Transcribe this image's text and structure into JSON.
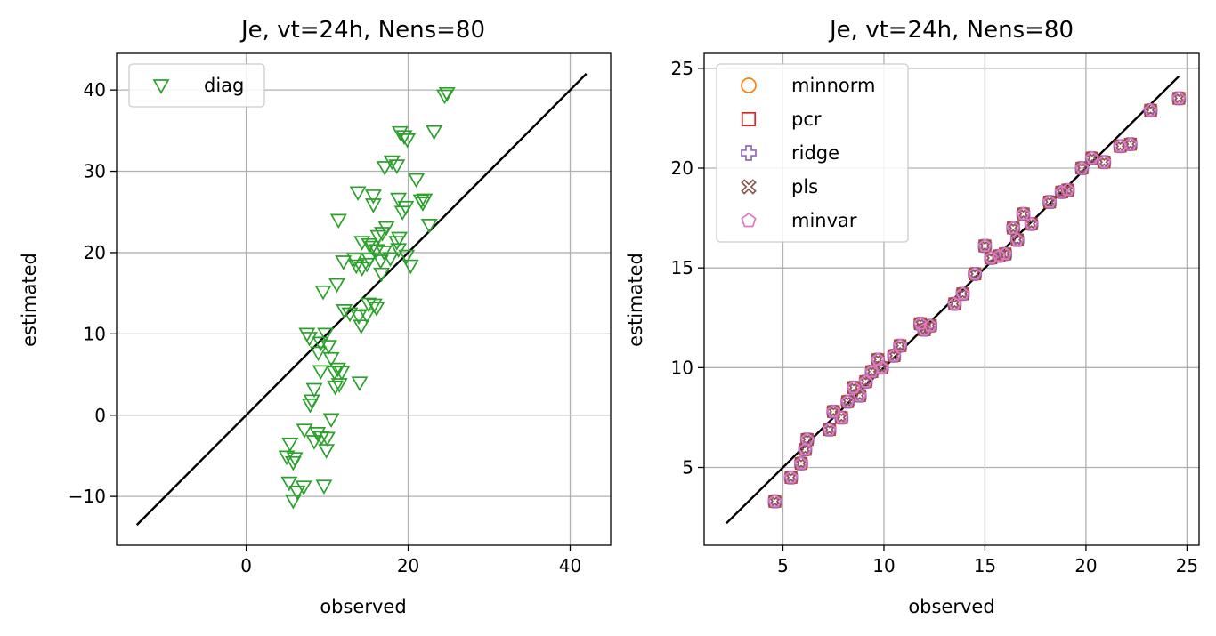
{
  "chart_data": [
    {
      "type": "scatter",
      "title": "Je, vt=24h, Nens=80",
      "xlabel": "observed",
      "ylabel": "estimated",
      "xlim": [
        -16,
        45
      ],
      "ylim": [
        -16,
        44.5
      ],
      "xticks": [
        0,
        20,
        40
      ],
      "xticklabels": [
        "0",
        "20",
        "40"
      ],
      "yticks": [
        -10,
        0,
        10,
        20,
        30,
        40
      ],
      "yticklabels": [
        "−10",
        "0",
        "10",
        "20",
        "30",
        "40"
      ],
      "grid": true,
      "legend_position": "top-left",
      "reference_line": {
        "x": [
          -13.5,
          42
        ],
        "y": [
          -13.5,
          42
        ],
        "color": "#000000"
      },
      "series": [
        {
          "name": "diag",
          "marker": "triangle-down",
          "color": "#2ca02c",
          "x": [
            24.5,
            24.8,
            23.2,
            19.0,
            19.5,
            19.9,
            18.0,
            18.6,
            17.1,
            21.0,
            13.8,
            15.7,
            18.8,
            21.6,
            22.0,
            21.8,
            19.7,
            19.3,
            15.7,
            11.4,
            17.3,
            16.8,
            16.3,
            18.9,
            18.6,
            22.6,
            14.3,
            15.2,
            15.6,
            16.1,
            17.0,
            19.8,
            12.0,
            13.4,
            14.9,
            15.2,
            16.6,
            17.8,
            18.8,
            20.3,
            13.6,
            14.3,
            16.7,
            9.5,
            11.2,
            15.8,
            16.1,
            15.1,
            12.1,
            12.8,
            13.9,
            14.9,
            14.2,
            7.5,
            7.8,
            9.8,
            9.2,
            10.2,
            8.9,
            10.5,
            11.3,
            10.9,
            11.8,
            9.2,
            11.5,
            11.0,
            14.0,
            8.4,
            8.1,
            7.9,
            10.5,
            7.2,
            8.8,
            9.3,
            8.4,
            10.0,
            5.4,
            9.9,
            6.0,
            5.0,
            5.8,
            5.3,
            7.1,
            6.3,
            9.6,
            5.8
          ],
          "y": [
            39.3,
            39.6,
            34.9,
            34.8,
            34.3,
            33.9,
            31.2,
            30.7,
            30.5,
            29.0,
            27.4,
            27.0,
            26.6,
            26.4,
            26.5,
            26.1,
            25.6,
            25.0,
            25.9,
            24.0,
            23.1,
            22.4,
            22.0,
            21.8,
            21.3,
            23.4,
            21.3,
            21.0,
            20.7,
            20.3,
            20.1,
            19.6,
            18.9,
            19.2,
            18.6,
            19.2,
            19.0,
            19.3,
            20.4,
            18.4,
            18.4,
            18.1,
            17.4,
            15.2,
            16.1,
            13.6,
            13.2,
            13.7,
            12.9,
            12.5,
            12.2,
            12.3,
            11.0,
            10.0,
            9.5,
            10.0,
            8.9,
            8.5,
            7.7,
            7.0,
            5.7,
            5.3,
            5.3,
            5.4,
            3.8,
            3.5,
            4.0,
            3.2,
            1.8,
            1.3,
            -0.5,
            -1.8,
            -2.2,
            -2.7,
            -3.2,
            -2.8,
            -3.5,
            -4.3,
            -5.3,
            -5.1,
            -5.8,
            -8.3,
            -8.8,
            -9.4,
            -8.7,
            -10.5
          ]
        }
      ]
    },
    {
      "type": "scatter",
      "title": "Je, vt=24h, Nens=80",
      "xlabel": "observed",
      "ylabel": "estimated",
      "xlim": [
        1.1,
        25.6
      ],
      "ylim": [
        1.1,
        25.75
      ],
      "xticks": [
        5,
        10,
        15,
        20,
        25
      ],
      "xticklabels": [
        "5",
        "10",
        "15",
        "20",
        "25"
      ],
      "yticks": [
        5,
        10,
        15,
        20,
        25
      ],
      "yticklabels": [
        "5",
        "10",
        "15",
        "20",
        "25"
      ],
      "grid": true,
      "legend_position": "top-left",
      "reference_line": {
        "x": [
          2.2,
          24.6
        ],
        "y": [
          2.2,
          24.6
        ],
        "color": "#000000"
      },
      "points": {
        "x": [
          4.6,
          5.4,
          5.9,
          6.1,
          6.2,
          7.3,
          7.5,
          7.9,
          8.2,
          8.5,
          8.8,
          9.1,
          9.4,
          9.7,
          9.9,
          10.5,
          10.8,
          11.8,
          12.0,
          12.3,
          13.5,
          13.9,
          14.5,
          15.0,
          15.3,
          15.7,
          16.0,
          16.4,
          16.6,
          16.9,
          17.3,
          18.2,
          18.8,
          19.1,
          19.8,
          20.3,
          20.9,
          21.7,
          22.2,
          23.2,
          24.6
        ],
        "y": [
          3.3,
          4.5,
          5.2,
          5.9,
          6.4,
          6.9,
          7.8,
          7.5,
          8.3,
          9.0,
          8.6,
          9.3,
          9.8,
          10.4,
          10.0,
          10.6,
          11.1,
          12.2,
          11.9,
          12.1,
          13.2,
          13.7,
          14.7,
          16.1,
          15.5,
          15.6,
          15.7,
          17.0,
          16.4,
          17.7,
          17.2,
          18.3,
          18.8,
          18.9,
          20.0,
          20.5,
          20.3,
          21.1,
          21.2,
          22.9,
          23.5
        ]
      },
      "series": [
        {
          "name": "minnorm",
          "marker": "circle",
          "color": "#ff7f0e"
        },
        {
          "name": "pcr",
          "marker": "square",
          "color": "#d62728"
        },
        {
          "name": "ridge",
          "marker": "plus",
          "color": "#9467bd"
        },
        {
          "name": "pls",
          "marker": "x",
          "color": "#8c564b"
        },
        {
          "name": "minvar",
          "marker": "pentagon",
          "color": "#e377c2"
        }
      ]
    }
  ]
}
